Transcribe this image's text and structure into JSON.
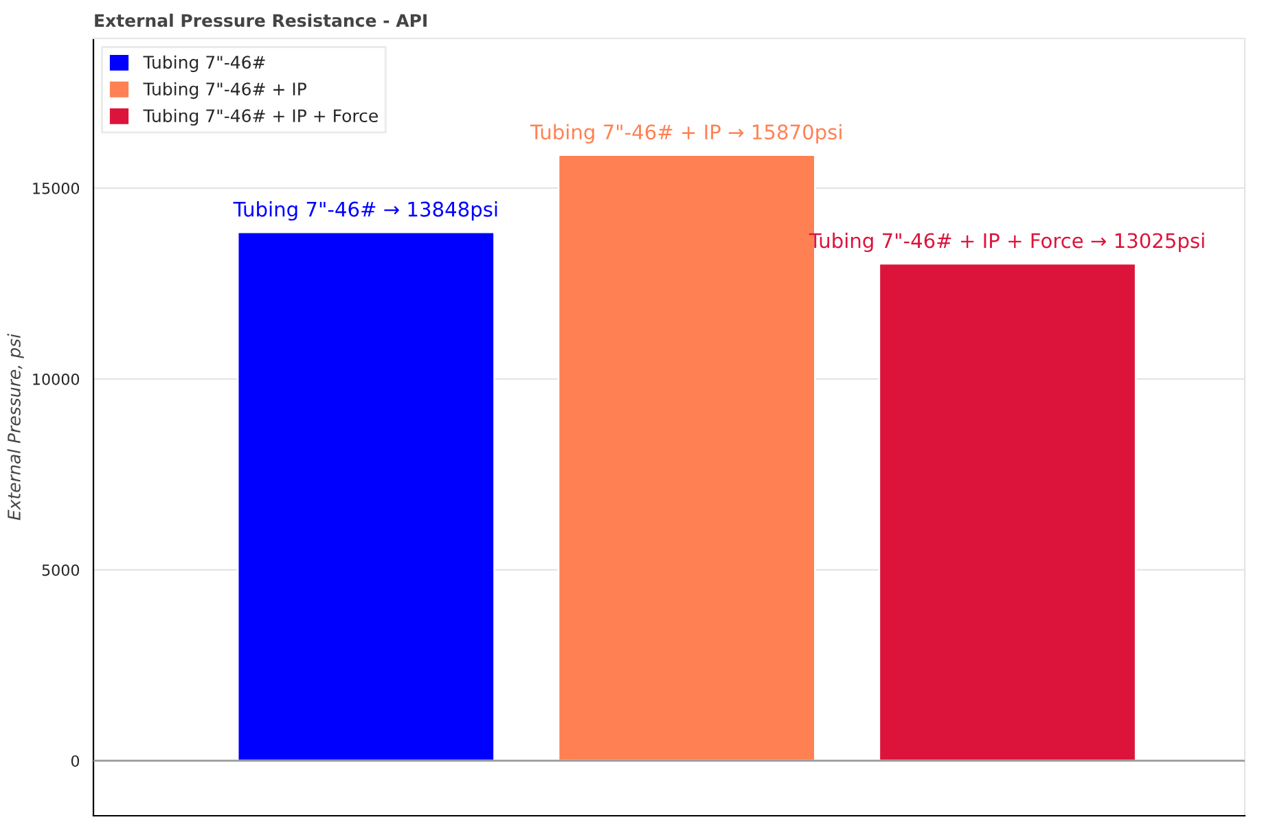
{
  "chart_data": {
    "type": "bar",
    "title": "External Pressure Resistance - API",
    "ylabel": "External Pressure, psi",
    "categories": [
      null,
      null,
      null
    ],
    "series": [
      {
        "name": "Tubing 7\"-46#",
        "color": "#0000ff",
        "values": [
          13848,
          null,
          null
        ],
        "value_labels": [
          "Tubing 7\"-46# → 13848psi",
          null,
          null
        ]
      },
      {
        "name": "Tubing 7\"-46# + IP",
        "color": "#ff8052",
        "values": [
          null,
          15870,
          null
        ],
        "value_labels": [
          null,
          "Tubing 7\"-46# + IP → 15870psi",
          null
        ]
      },
      {
        "name": "Tubing 7\"-46# + IP + Force",
        "color": "#dc143c",
        "values": [
          null,
          null,
          13025
        ],
        "value_labels": [
          null,
          null,
          "Tubing 7\"-46# + IP + Force → 13025psi"
        ]
      }
    ],
    "ylim": [
      -1440,
      18920
    ],
    "yticks": [
      0,
      5000,
      10000,
      15000
    ],
    "ref_lines": [
      {
        "axis": "y",
        "value": 0,
        "color": "#999999"
      }
    ],
    "grid": "y",
    "legend": "top left",
    "tick_labels": "y"
  }
}
